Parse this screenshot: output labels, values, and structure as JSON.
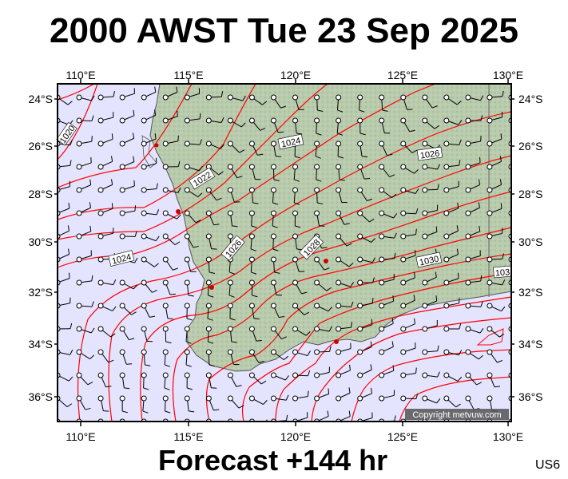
{
  "title": "2000 AWST Tue 23 Sep 2025",
  "footer": "Forecast +144 hr",
  "code": "US6",
  "copyright": "Copyright metvuw.com",
  "axes": {
    "lon_labels": [
      "110°E",
      "115°E",
      "120°E",
      "125°E",
      "130°E"
    ],
    "lat_labels": [
      "24°S",
      "26°S",
      "28°S",
      "30°S",
      "32°S",
      "34°S",
      "36°S"
    ]
  },
  "isobar_labels": [
    {
      "text": "1020"
    },
    {
      "text": "1022"
    },
    {
      "text": "1024"
    },
    {
      "text": "1024"
    },
    {
      "text": "1026"
    },
    {
      "text": "1026"
    },
    {
      "text": "1028"
    },
    {
      "text": "1030"
    },
    {
      "text": "103"
    }
  ],
  "colors": {
    "ocean": "#e4e4ff",
    "land": "#b7c9ab",
    "isobar": "#ff0000",
    "frame": "#000000"
  }
}
